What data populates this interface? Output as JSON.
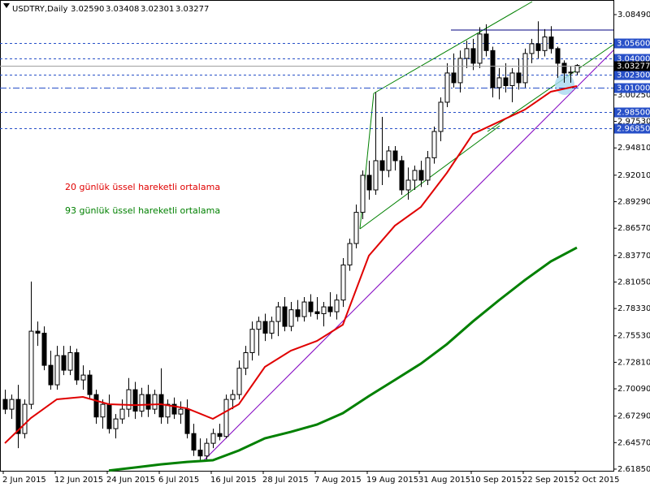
{
  "chart_data": {
    "type": "candlestick",
    "title": "USDTRY,Daily",
    "ohlc_labels": [
      "3.02590",
      "3.03408",
      "3.02301",
      "3.03277"
    ],
    "categories": [
      "2 Jun 2015",
      null,
      null,
      null,
      null,
      null,
      null,
      null,
      "12 Jun 2015",
      null,
      null,
      null,
      null,
      null,
      null,
      null,
      "24 Jun 2015",
      null,
      null,
      null,
      null,
      null,
      null,
      null,
      "6 Jul 2015",
      null,
      null,
      null,
      null,
      null,
      null,
      null,
      "16 Jul 2015",
      null,
      null,
      null,
      null,
      null,
      null,
      null,
      "28 Jul 2015",
      null,
      null,
      null,
      null,
      null,
      null,
      null,
      "7 Aug 2015",
      null,
      null,
      null,
      null,
      null,
      null,
      null,
      "19 Aug 2015",
      null,
      null,
      null,
      null,
      null,
      null,
      null,
      "31 Aug 2015",
      null,
      null,
      null,
      null,
      null,
      null,
      null,
      "10 Sep 2015",
      null,
      null,
      null,
      null,
      null,
      null,
      null,
      "22 Sep 2015",
      null,
      null,
      null,
      null,
      null,
      null,
      null,
      "2 Oct 2015"
    ],
    "ohlc": [
      [
        2.69,
        2.7,
        2.675,
        2.68
      ],
      [
        2.68,
        2.695,
        2.67,
        2.69
      ],
      [
        2.69,
        2.705,
        2.64,
        2.655
      ],
      [
        2.655,
        2.69,
        2.65,
        2.685
      ],
      [
        2.685,
        2.811,
        2.68,
        2.76
      ],
      [
        2.76,
        2.77,
        2.745,
        2.758
      ],
      [
        2.758,
        2.765,
        2.72,
        2.725
      ],
      [
        2.725,
        2.74,
        2.7,
        2.705
      ],
      [
        2.705,
        2.745,
        2.7,
        2.735
      ],
      [
        2.735,
        2.745,
        2.715,
        2.72
      ],
      [
        2.72,
        2.745,
        2.715,
        2.738
      ],
      [
        2.738,
        2.742,
        2.705,
        2.71
      ],
      [
        2.71,
        2.725,
        2.7,
        2.715
      ],
      [
        2.715,
        2.72,
        2.69,
        2.695
      ],
      [
        2.695,
        2.7,
        2.665,
        2.672
      ],
      [
        2.672,
        2.69,
        2.66,
        2.685
      ],
      [
        2.685,
        2.695,
        2.655,
        2.66
      ],
      [
        2.66,
        2.675,
        2.65,
        2.67
      ],
      [
        2.67,
        2.69,
        2.665,
        2.68
      ],
      [
        2.68,
        2.712,
        2.672,
        2.7
      ],
      [
        2.7,
        2.708,
        2.67,
        2.678
      ],
      [
        2.678,
        2.702,
        2.672,
        2.695
      ],
      [
        2.695,
        2.705,
        2.672,
        2.68
      ],
      [
        2.68,
        2.7,
        2.675,
        2.695
      ],
      [
        2.695,
        2.722,
        2.665,
        2.672
      ],
      [
        2.672,
        2.69,
        2.665,
        2.685
      ],
      [
        2.685,
        2.692,
        2.67,
        2.675
      ],
      [
        2.675,
        2.688,
        2.665,
        2.68
      ],
      [
        2.68,
        2.69,
        2.65,
        2.655
      ],
      [
        2.655,
        2.665,
        2.632,
        2.638
      ],
      [
        2.638,
        2.65,
        2.628,
        2.632
      ],
      [
        2.632,
        2.65,
        2.628,
        2.645
      ],
      [
        2.645,
        2.66,
        2.64,
        2.655
      ],
      [
        2.655,
        2.665,
        2.648,
        2.652
      ],
      [
        2.652,
        2.695,
        2.65,
        2.69
      ],
      [
        2.69,
        2.7,
        2.68,
        2.695
      ],
      [
        2.695,
        2.73,
        2.69,
        2.722
      ],
      [
        2.722,
        2.745,
        2.715,
        2.738
      ],
      [
        2.738,
        2.77,
        2.73,
        2.762
      ],
      [
        2.762,
        2.775,
        2.735,
        2.77
      ],
      [
        2.77,
        2.778,
        2.75,
        2.758
      ],
      [
        2.758,
        2.775,
        2.752,
        2.77
      ],
      [
        2.77,
        2.79,
        2.755,
        2.785
      ],
      [
        2.785,
        2.795,
        2.76,
        2.765
      ],
      [
        2.765,
        2.79,
        2.76,
        2.782
      ],
      [
        2.782,
        2.792,
        2.77,
        2.775
      ],
      [
        2.775,
        2.795,
        2.77,
        2.79
      ],
      [
        2.79,
        2.798,
        2.775,
        2.78
      ],
      [
        2.78,
        2.795,
        2.772,
        2.778
      ],
      [
        2.778,
        2.79,
        2.765,
        2.785
      ],
      [
        2.785,
        2.8,
        2.775,
        2.78
      ],
      [
        2.78,
        2.798,
        2.772,
        2.792
      ],
      [
        2.792,
        2.835,
        2.785,
        2.828
      ],
      [
        2.828,
        2.855,
        2.822,
        2.85
      ],
      [
        2.85,
        2.89,
        2.845,
        2.882
      ],
      [
        2.882,
        2.925,
        2.875,
        2.92
      ],
      [
        2.92,
        2.935,
        2.895,
        2.905
      ],
      [
        2.905,
        3.005,
        2.9,
        2.935
      ],
      [
        2.935,
        2.98,
        2.91,
        2.925
      ],
      [
        2.925,
        2.95,
        2.918,
        2.945
      ],
      [
        2.945,
        2.95,
        2.925,
        2.935
      ],
      [
        2.935,
        2.94,
        2.9,
        2.905
      ],
      [
        2.905,
        2.928,
        2.895,
        2.915
      ],
      [
        2.915,
        2.93,
        2.905,
        2.925
      ],
      [
        2.925,
        2.935,
        2.908,
        2.915
      ],
      [
        2.915,
        2.945,
        2.91,
        2.938
      ],
      [
        2.938,
        2.97,
        2.932,
        2.965
      ],
      [
        2.965,
        3.0,
        2.955,
        2.995
      ],
      [
        2.995,
        3.035,
        2.99,
        3.025
      ],
      [
        3.025,
        3.045,
        3.01,
        3.015
      ],
      [
        3.015,
        3.048,
        3.005,
        3.04
      ],
      [
        3.04,
        3.058,
        3.03,
        3.05
      ],
      [
        3.05,
        3.06,
        3.028,
        3.035
      ],
      [
        3.035,
        3.072,
        3.03,
        3.065
      ],
      [
        3.065,
        3.075,
        3.042,
        3.048
      ],
      [
        3.048,
        3.052,
        3.0,
        3.01
      ],
      [
        3.01,
        3.03,
        2.998,
        3.02
      ],
      [
        3.02,
        3.035,
        3.005,
        3.012
      ],
      [
        3.012,
        3.03,
        2.995,
        3.025
      ],
      [
        3.025,
        3.04,
        3.008,
        3.015
      ],
      [
        3.015,
        3.05,
        3.01,
        3.045
      ],
      [
        3.045,
        3.06,
        3.035,
        3.055
      ],
      [
        3.055,
        3.078,
        3.04,
        3.048
      ],
      [
        3.048,
        3.07,
        3.042,
        3.062
      ],
      [
        3.062,
        3.073,
        3.045,
        3.05
      ],
      [
        3.05,
        3.052,
        3.02,
        3.035
      ],
      [
        3.035,
        3.038,
        3.015,
        3.025
      ],
      [
        3.025,
        3.032,
        3.015,
        3.0259
      ],
      [
        3.0259,
        3.03408,
        3.02301,
        3.03277
      ]
    ],
    "series": [
      {
        "name": "20 günlük üssel hareketli ortalama",
        "color": "#e00000",
        "x": [
          0,
          4,
          8,
          12,
          16,
          20,
          24,
          28,
          32,
          36,
          40,
          44,
          48,
          52,
          56,
          60,
          64,
          68,
          72,
          76,
          80,
          84,
          88
        ],
        "values": [
          2.6451,
          2.6709,
          2.6901,
          2.6926,
          2.6851,
          2.6842,
          2.6851,
          2.6809,
          2.6701,
          2.6851,
          2.7234,
          2.74,
          2.75,
          2.7667,
          2.8375,
          2.8683,
          2.8875,
          2.9225,
          2.9624,
          2.9749,
          2.9874,
          3.0058,
          3.0116
        ]
      },
      {
        "name": "93 günlük üssel hareketli ortalama",
        "color": "#008000",
        "x": [
          16,
          20,
          24,
          28,
          32,
          36,
          40,
          44,
          48,
          52,
          56,
          60,
          64,
          68,
          72,
          76,
          80,
          84,
          88
        ],
        "values": [
          2.617,
          2.6201,
          2.6234,
          2.6259,
          2.6276,
          2.6376,
          2.6501,
          2.6567,
          2.6642,
          2.6759,
          2.6934,
          2.71,
          2.7267,
          2.7467,
          2.77,
          2.7917,
          2.8125,
          2.8317,
          2.8458
        ]
      }
    ],
    "levels": [
      {
        "value": 3.056,
        "label": "3.05600",
        "style": "dash"
      },
      {
        "value": 3.04,
        "label": "3.04000",
        "style": "dash"
      },
      {
        "value": 3.023,
        "label": "3.02300",
        "style": "dash"
      },
      {
        "value": 3.01,
        "label": "3.01000",
        "style": "dashdot"
      },
      {
        "value": 2.985,
        "label": "2.98500",
        "style": "dash"
      },
      {
        "value": 2.9685,
        "label": "2.96850",
        "style": "dash"
      }
    ],
    "level_color": "#2850c8",
    "bull_color": "#ffffff",
    "bear_color": "#000000",
    "ylim": [
      2.6168,
      3.0999
    ],
    "yticks": [
      {
        "value": 3.0849,
        "label": "3.08490"
      },
      {
        "value": 3.0025,
        "label": "3.00250"
      },
      {
        "value": 2.9753,
        "label": "2.97530"
      },
      {
        "value": 2.9481,
        "label": "2.94810"
      },
      {
        "value": 2.9201,
        "label": "2.92010"
      },
      {
        "value": 2.8929,
        "label": "2.89290"
      },
      {
        "value": 2.8657,
        "label": "2.86570"
      },
      {
        "value": 2.8377,
        "label": "2.83770"
      },
      {
        "value": 2.8105,
        "label": "2.81050"
      },
      {
        "value": 2.7833,
        "label": "2.78330"
      },
      {
        "value": 2.7553,
        "label": "2.75530"
      },
      {
        "value": 2.7281,
        "label": "2.72810"
      },
      {
        "value": 2.7009,
        "label": "2.70090"
      },
      {
        "value": 2.6729,
        "label": "2.67290"
      },
      {
        "value": 2.6457,
        "label": "2.64570"
      },
      {
        "value": 2.6185,
        "label": "2.61850"
      }
    ]
  }
}
